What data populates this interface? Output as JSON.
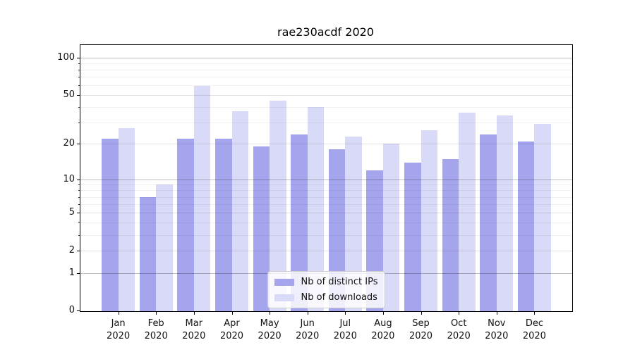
{
  "title": "rae230acdf 2020",
  "palette": {
    "background": "#ffffff",
    "spine": "#000000",
    "ips_bar": "#a5a5ee",
    "downloads_bar": "#d9d9f8",
    "tick_text": "#111111"
  },
  "chart_data": {
    "type": "bar",
    "title": "rae230acdf 2020",
    "x_tick_months": [
      "Jan",
      "Feb",
      "Mar",
      "Apr",
      "May",
      "Jun",
      "Jul",
      "Aug",
      "Sep",
      "Oct",
      "Nov",
      "Dec"
    ],
    "x_tick_year": "2020",
    "categories": [
      "Jan 2020",
      "Feb 2020",
      "Mar 2020",
      "Apr 2020",
      "May 2020",
      "Jun 2020",
      "Jul 2020",
      "Aug 2020",
      "Sep 2020",
      "Oct 2020",
      "Nov 2020",
      "Dec 2020"
    ],
    "series": [
      {
        "name": "Nb of distinct IPs",
        "color": "#a5a5ee",
        "values": [
          22,
          7,
          22,
          22,
          19,
          24,
          18,
          12,
          14,
          15,
          24,
          21
        ]
      },
      {
        "name": "Nb of downloads",
        "color": "#d9d9f8",
        "values": [
          27,
          9,
          59,
          37,
          45,
          40,
          23,
          20,
          26,
          36,
          34,
          29
        ]
      }
    ],
    "xlabel": "",
    "ylabel": "",
    "y_scale": "log1p",
    "ylim": [
      0,
      125
    ],
    "y_ticks": [
      0,
      1,
      2,
      5,
      10,
      20,
      50,
      100
    ],
    "y_minor_gridlines": [
      3,
      4,
      6,
      7,
      8,
      9,
      30,
      40,
      60,
      70,
      80,
      90
    ],
    "y_emphasized_gridlines": [
      1,
      10,
      100
    ],
    "grid": true,
    "grid_above_bars": true,
    "legend_position": "lower center"
  }
}
